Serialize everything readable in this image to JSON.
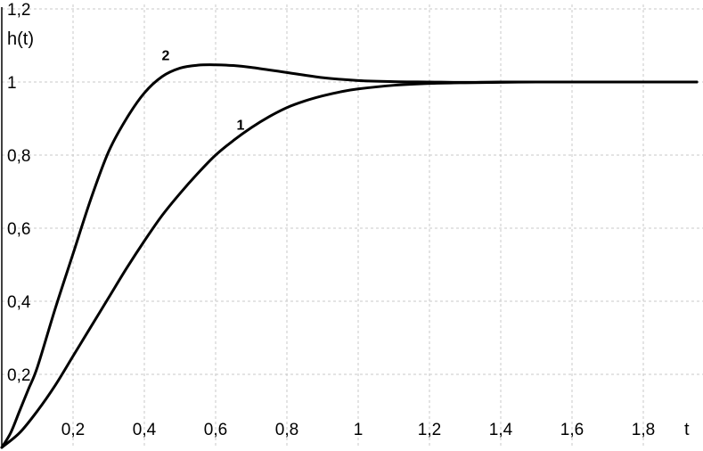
{
  "chart_data": {
    "type": "line",
    "xlabel": "t",
    "ylabel": "h(t)",
    "xlim": [
      0,
      1.95
    ],
    "ylim": [
      0,
      1.2
    ],
    "grid": true,
    "x_ticks": [
      {
        "value": 0.2,
        "label": "0,2"
      },
      {
        "value": 0.4,
        "label": "0,4"
      },
      {
        "value": 0.6,
        "label": "0,6"
      },
      {
        "value": 0.8,
        "label": "0,8"
      },
      {
        "value": 1.0,
        "label": "1"
      },
      {
        "value": 1.2,
        "label": "1,2"
      },
      {
        "value": 1.4,
        "label": "1,4"
      },
      {
        "value": 1.6,
        "label": "1,6"
      },
      {
        "value": 1.8,
        "label": "1,8"
      }
    ],
    "y_ticks": [
      {
        "value": 0.2,
        "label": "0,2"
      },
      {
        "value": 0.4,
        "label": "0,4"
      },
      {
        "value": 0.6,
        "label": "0,6"
      },
      {
        "value": 0.8,
        "label": "0,8"
      },
      {
        "value": 1.0,
        "label": "1"
      },
      {
        "value": 1.2,
        "label": "1,2"
      }
    ],
    "series": [
      {
        "name": "1",
        "x": [
          0,
          0.05,
          0.1,
          0.15,
          0.2,
          0.25,
          0.3,
          0.35,
          0.4,
          0.45,
          0.5,
          0.55,
          0.6,
          0.65,
          0.7,
          0.75,
          0.8,
          0.85,
          0.9,
          0.95,
          1.0,
          1.1,
          1.2,
          1.3,
          1.4,
          1.5,
          1.6,
          1.7,
          1.8,
          1.95
        ],
        "y": [
          0,
          0.04,
          0.1,
          0.17,
          0.25,
          0.33,
          0.41,
          0.49,
          0.565,
          0.635,
          0.695,
          0.75,
          0.8,
          0.84,
          0.875,
          0.905,
          0.93,
          0.948,
          0.962,
          0.973,
          0.981,
          0.991,
          0.996,
          0.998,
          0.999,
          1.0,
          1.0,
          1.0,
          1.0,
          1.0
        ],
        "label_at": [
          0.67,
          0.87
        ]
      },
      {
        "name": "2",
        "x": [
          0,
          0.025,
          0.05,
          0.075,
          0.1,
          0.15,
          0.2,
          0.25,
          0.3,
          0.35,
          0.4,
          0.45,
          0.5,
          0.55,
          0.6,
          0.65,
          0.7,
          0.8,
          0.9,
          1.0,
          1.1,
          1.2,
          1.3,
          1.4,
          1.6,
          1.8,
          1.95
        ],
        "y": [
          0,
          0.04,
          0.1,
          0.16,
          0.22,
          0.38,
          0.53,
          0.68,
          0.81,
          0.9,
          0.97,
          1.015,
          1.038,
          1.046,
          1.047,
          1.045,
          1.04,
          1.026,
          1.012,
          1.004,
          1.001,
          1.0,
          0.999,
          1.0,
          1.0,
          1.0,
          1.0
        ],
        "label_at": [
          0.46,
          1.06
        ]
      }
    ]
  }
}
